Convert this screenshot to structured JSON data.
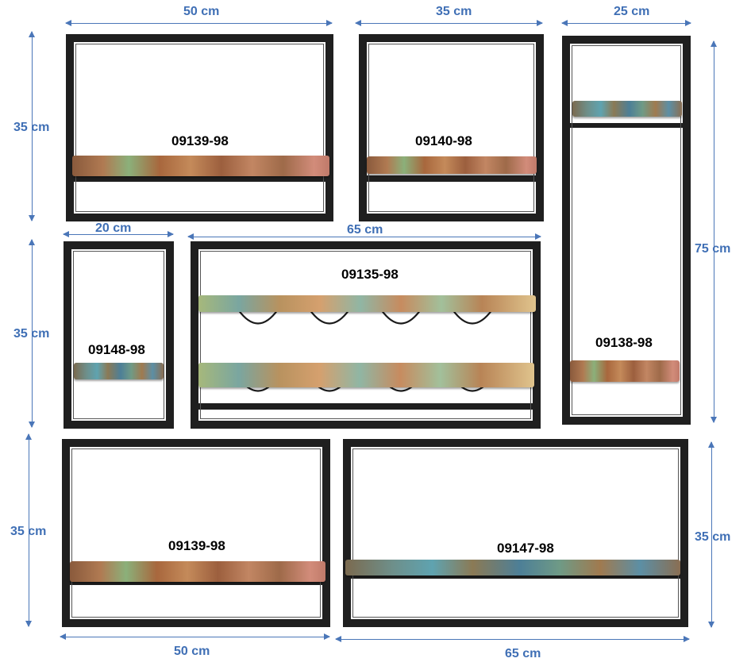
{
  "products": {
    "p1": {
      "code": "09139-98",
      "width": "50 cm",
      "height": "35 cm"
    },
    "p2": {
      "code": "09140-98",
      "width": "35 cm"
    },
    "p3": {
      "code": "09138-98",
      "width": "25 cm",
      "height": "75 cm"
    },
    "p4": {
      "code": "09148-98",
      "width": "20 cm",
      "height": "35 cm"
    },
    "p5": {
      "code": "09135-98",
      "width": "65 cm"
    },
    "p6": {
      "code": "09139-98",
      "width": "50 cm",
      "height": "35 cm"
    },
    "p7": {
      "code": "09147-98",
      "width": "65 cm",
      "height": "35 cm"
    }
  },
  "colors": {
    "frame": "#1f1f1f",
    "dimension": "#3f6fb5"
  }
}
